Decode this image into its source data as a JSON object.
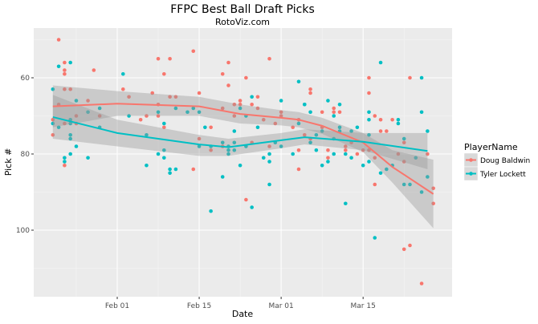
{
  "chart_data": {
    "type": "scatter",
    "title": "FFPC Best Ball Draft Picks",
    "subtitle": "RotoViz.com",
    "xlabel": "Date",
    "ylabel": "Pick #",
    "x_ticks": [
      "Feb 01",
      "Feb 15",
      "Mar 01",
      "Mar 15"
    ],
    "y_ticks": [
      60,
      80,
      100
    ],
    "y_reversed": true,
    "xlim": [
      "Jan 18",
      "Mar 30"
    ],
    "ylim": [
      117.5,
      47
    ],
    "grid": true,
    "legend": {
      "title": "PlayerName",
      "placement": "right"
    },
    "smoother": "loess with confidence band",
    "series": [
      {
        "name": "Doug Baldwin",
        "color": "#F8766D",
        "points": [
          [
            "Jan 22",
            50
          ],
          [
            "Jan 23",
            56
          ],
          [
            "Jan 23",
            58
          ],
          [
            "Jan 23",
            59
          ],
          [
            "Jan 28",
            58
          ],
          [
            "Feb 08",
            55
          ],
          [
            "Feb 10",
            55
          ],
          [
            "Feb 09",
            59
          ],
          [
            "Jan 23",
            63
          ],
          [
            "Jan 24",
            63
          ],
          [
            "Feb 02",
            63
          ],
          [
            "Feb 03",
            65
          ],
          [
            "Feb 07",
            64
          ],
          [
            "Feb 10",
            65
          ],
          [
            "Feb 11",
            65
          ],
          [
            "Jan 22",
            67
          ],
          [
            "Jan 27",
            66
          ],
          [
            "Feb 08",
            67
          ],
          [
            "Jan 25",
            70
          ],
          [
            "Jan 29",
            70
          ],
          [
            "Feb 06",
            70
          ],
          [
            "Feb 08",
            70
          ],
          [
            "Jan 21",
            71
          ],
          [
            "Jan 23",
            72
          ],
          [
            "Jan 25",
            72
          ],
          [
            "Feb 05",
            71
          ],
          [
            "Feb 09",
            73
          ],
          [
            "Jan 21",
            75
          ],
          [
            "Jan 23",
            83
          ],
          [
            "Feb 14",
            53
          ],
          [
            "Feb 20",
            56
          ],
          [
            "Feb 27",
            55
          ],
          [
            "Feb 19",
            59
          ],
          [
            "Feb 23",
            60
          ],
          [
            "Feb 20",
            62
          ],
          [
            "Feb 15",
            64
          ],
          [
            "Feb 22",
            66
          ],
          [
            "Feb 25",
            65
          ],
          [
            "Feb 19",
            68
          ],
          [
            "Feb 21",
            67
          ],
          [
            "Feb 22",
            67
          ],
          [
            "Feb 24",
            67
          ],
          [
            "Feb 25",
            68
          ],
          [
            "Feb 21",
            70
          ],
          [
            "Mar 01",
            69
          ],
          [
            "Mar 01",
            70
          ],
          [
            "Feb 26",
            71
          ],
          [
            "Feb 28",
            72
          ],
          [
            "Mar 04",
            71
          ],
          [
            "Feb 17",
            73
          ],
          [
            "Mar 03",
            73
          ],
          [
            "Feb 15",
            76
          ],
          [
            "Mar 05",
            75
          ],
          [
            "Feb 17",
            79
          ],
          [
            "Feb 19",
            78
          ],
          [
            "Feb 24",
            77
          ],
          [
            "Feb 27",
            78
          ],
          [
            "Mar 04",
            79
          ],
          [
            "Feb 14",
            84
          ],
          [
            "Mar 04",
            84
          ],
          [
            "Feb 23",
            92
          ],
          [
            "Mar 16",
            60
          ],
          [
            "Mar 23",
            60
          ],
          [
            "Mar 06",
            63
          ],
          [
            "Mar 06",
            64
          ],
          [
            "Mar 16",
            64
          ],
          [
            "Mar 10",
            68
          ],
          [
            "Mar 10",
            69
          ],
          [
            "Mar 11",
            69
          ],
          [
            "Mar 08",
            69
          ],
          [
            "Mar 17",
            70
          ],
          [
            "Mar 18",
            71
          ],
          [
            "Mar 20",
            71
          ],
          [
            "Mar 06",
            76
          ],
          [
            "Mar 08",
            73
          ],
          [
            "Mar 18",
            74
          ],
          [
            "Mar 19",
            74
          ],
          [
            "Mar 12",
            78
          ],
          [
            "Mar 12",
            79
          ],
          [
            "Mar 13",
            77
          ],
          [
            "Mar 15",
            79
          ],
          [
            "Mar 16",
            79
          ],
          [
            "Mar 09",
            79
          ],
          [
            "Mar 14",
            80
          ],
          [
            "Mar 09",
            81
          ],
          [
            "Mar 17",
            81
          ],
          [
            "Mar 21",
            80
          ],
          [
            "Mar 22",
            77
          ],
          [
            "Mar 22",
            82
          ],
          [
            "Mar 26",
            80
          ],
          [
            "Mar 17",
            88
          ],
          [
            "Mar 27",
            89
          ],
          [
            "Mar 27",
            93
          ],
          [
            "Mar 22",
            105
          ],
          [
            "Mar 23",
            104
          ],
          [
            "Mar 25",
            114
          ]
        ],
        "smooth": [
          [
            "Jan 21",
            67.5,
            62,
            73
          ],
          [
            "Feb 01",
            66.8,
            63.5,
            70
          ],
          [
            "Feb 15",
            67.5,
            65,
            70
          ],
          [
            "Feb 22",
            69.5,
            67,
            72
          ],
          [
            "Mar 01",
            70.5,
            68.5,
            72.5
          ],
          [
            "Mar 04",
            71,
            69,
            73
          ],
          [
            "Mar 08",
            72.6,
            70.5,
            74.7
          ],
          [
            "Mar 15",
            77,
            74.5,
            79.5
          ],
          [
            "Mar 20",
            83.4,
            79,
            87.5
          ],
          [
            "Mar 27",
            90.5,
            81.5,
            99.5
          ]
        ]
      },
      {
        "name": "Tyler Lockett",
        "color": "#00BFC4",
        "points": [
          [
            "Jan 22",
            57
          ],
          [
            "Jan 24",
            56
          ],
          [
            "Feb 02",
            59
          ],
          [
            "Jan 21",
            63
          ],
          [
            "Jan 25",
            66
          ],
          [
            "Jan 27",
            69
          ],
          [
            "Jan 29",
            68
          ],
          [
            "Feb 11",
            68
          ],
          [
            "Feb 03",
            70
          ],
          [
            "Jan 24",
            71
          ],
          [
            "Jan 21",
            72
          ],
          [
            "Jan 22",
            73
          ],
          [
            "Jan 24",
            72
          ],
          [
            "Jan 29",
            73
          ],
          [
            "Feb 08",
            69
          ],
          [
            "Feb 09",
            72
          ],
          [
            "Jan 24",
            75
          ],
          [
            "Jan 24",
            76
          ],
          [
            "Feb 06",
            75
          ],
          [
            "Jan 25",
            78
          ],
          [
            "Jan 24",
            80
          ],
          [
            "Feb 08",
            80
          ],
          [
            "Jan 23",
            81
          ],
          [
            "Jan 23",
            82
          ],
          [
            "Jan 27",
            81
          ],
          [
            "Feb 09",
            81
          ],
          [
            "Feb 06",
            83
          ],
          [
            "Feb 10",
            84
          ],
          [
            "Feb 11",
            84
          ],
          [
            "Feb 10",
            85
          ],
          [
            "Mar 04",
            61
          ],
          [
            "Feb 13",
            69
          ],
          [
            "Feb 14",
            68
          ],
          [
            "Feb 15",
            69
          ],
          [
            "Feb 22",
            68
          ],
          [
            "Feb 24",
            65
          ],
          [
            "Mar 01",
            66
          ],
          [
            "Mar 05",
            67
          ],
          [
            "Feb 23",
            70
          ],
          [
            "Feb 16",
            73
          ],
          [
            "Feb 21",
            74
          ],
          [
            "Feb 25",
            73
          ],
          [
            "Mar 04",
            72
          ],
          [
            "Feb 09",
            79
          ],
          [
            "Feb 15",
            78
          ],
          [
            "Feb 17",
            78
          ],
          [
            "Feb 19",
            77
          ],
          [
            "Feb 20",
            78
          ],
          [
            "Feb 20",
            79
          ],
          [
            "Feb 20",
            80
          ],
          [
            "Feb 21",
            77
          ],
          [
            "Feb 21",
            79
          ],
          [
            "Feb 23",
            78
          ],
          [
            "Feb 28",
            77
          ],
          [
            "Mar 01",
            78
          ],
          [
            "Feb 27",
            80
          ],
          [
            "Feb 26",
            81
          ],
          [
            "Feb 27",
            82
          ],
          [
            "Mar 03",
            80
          ],
          [
            "Feb 22",
            83
          ],
          [
            "Feb 19",
            86
          ],
          [
            "Feb 27",
            88
          ],
          [
            "Feb 17",
            95
          ],
          [
            "Feb 24",
            94
          ],
          [
            "Mar 18",
            56
          ],
          [
            "Mar 25",
            60
          ],
          [
            "Mar 05",
            67
          ],
          [
            "Mar 09",
            66
          ],
          [
            "Mar 11",
            67
          ],
          [
            "Mar 06",
            69
          ],
          [
            "Mar 10",
            70
          ],
          [
            "Mar 16",
            69
          ],
          [
            "Mar 16",
            71
          ],
          [
            "Mar 21",
            71
          ],
          [
            "Mar 21",
            72
          ],
          [
            "Mar 25",
            69
          ],
          [
            "Mar 08",
            74
          ],
          [
            "Mar 11",
            73
          ],
          [
            "Mar 11",
            74
          ],
          [
            "Mar 13",
            74
          ],
          [
            "Mar 14",
            73
          ],
          [
            "Mar 07",
            75
          ],
          [
            "Mar 10",
            76
          ],
          [
            "Mar 16",
            75
          ],
          [
            "Mar 26",
            74
          ],
          [
            "Mar 06",
            77
          ],
          [
            "Mar 22",
            76
          ],
          [
            "Mar 07",
            79
          ],
          [
            "Mar 10",
            80
          ],
          [
            "Mar 12",
            80
          ],
          [
            "Mar 08",
            83
          ],
          [
            "Mar 09",
            82
          ],
          [
            "Mar 13",
            81
          ],
          [
            "Mar 15",
            83
          ],
          [
            "Mar 16",
            82
          ],
          [
            "Mar 18",
            85
          ],
          [
            "Mar 19",
            84
          ],
          [
            "Mar 20",
            83
          ],
          [
            "Mar 24",
            81
          ],
          [
            "Mar 26",
            86
          ],
          [
            "Mar 22",
            88
          ],
          [
            "Mar 23",
            88
          ],
          [
            "Mar 25",
            90
          ],
          [
            "Mar 12",
            93
          ],
          [
            "Mar 17",
            102
          ]
        ],
        "smooth": [
          [
            "Jan 21",
            70.3,
            64.5,
            76
          ],
          [
            "Feb 01",
            74.5,
            71,
            78
          ],
          [
            "Feb 15",
            77.5,
            75,
            80.5
          ],
          [
            "Feb 20",
            78.2,
            76,
            80.5
          ],
          [
            "Mar 01",
            76.4,
            74.5,
            78.5
          ],
          [
            "Mar 05",
            75.6,
            73.5,
            77.5
          ],
          [
            "Mar 15",
            76.8,
            74.5,
            79
          ],
          [
            "Mar 26",
            79.2,
            74.5,
            84
          ]
        ]
      }
    ]
  }
}
